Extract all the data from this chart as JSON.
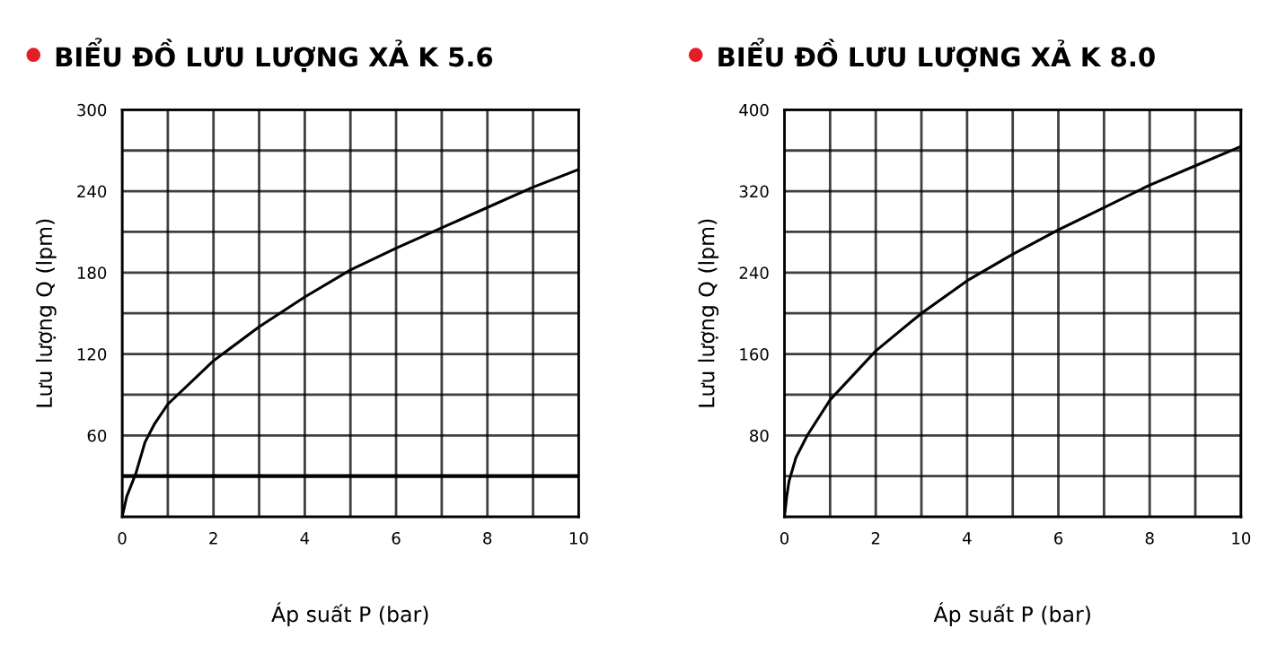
{
  "chart_data": [
    {
      "type": "line",
      "title": "BIỂU ĐỒ LƯU LƯỢNG XẢ K 5.6",
      "xlabel": "Áp suất P (bar)",
      "ylabel": "Lưu lượng Q (lpm)",
      "x": [
        0,
        0.1,
        0.3,
        0.5,
        0.7,
        1,
        2,
        3,
        4,
        5,
        6,
        7,
        8,
        9,
        10
      ],
      "series": [
        {
          "color": "#000000",
          "values": [
            0,
            15,
            32,
            55,
            68,
            83,
            115,
            140,
            162,
            182,
            198,
            213,
            228,
            243,
            256
          ]
        }
      ],
      "xlim": [
        0,
        10
      ],
      "ylim": [
        0,
        300
      ],
      "xticks": [
        0,
        {
          "value": 1,
          "label": null
        },
        2,
        {
          "value": 3,
          "label": null
        },
        4,
        {
          "value": 5,
          "label": null
        },
        6,
        {
          "value": 7,
          "label": null
        },
        8,
        {
          "value": 9,
          "label": null
        },
        10
      ],
      "yticks": [
        {
          "value": 30,
          "label": null
        },
        60,
        {
          "value": 90,
          "label": null
        },
        120,
        {
          "value": 150,
          "label": null
        },
        180,
        {
          "value": 210,
          "label": null
        },
        240,
        {
          "value": 270,
          "label": null
        },
        300
      ],
      "ref_lines": [
        {
          "axis": "y",
          "value": 30,
          "color": "#000000"
        }
      ],
      "grid": true,
      "marker": "none",
      "line_style": "solid",
      "legend": false
    },
    {
      "type": "line",
      "title": "BIỂU ĐỒ LƯU LƯỢNG XẢ K 8.0",
      "xlabel": "Áp suất P (bar)",
      "ylabel": "Lưu lượng Q (lpm)",
      "x": [
        0,
        0.05,
        0.1,
        0.25,
        0.5,
        1,
        2,
        3,
        4,
        5,
        6,
        7,
        8,
        9,
        10
      ],
      "series": [
        {
          "color": "#000000",
          "values": [
            0,
            20,
            35,
            58,
            80,
            115,
            163,
            200,
            232,
            258,
            282,
            304,
            326,
            345,
            364
          ]
        }
      ],
      "xlim": [
        0,
        10
      ],
      "ylim": [
        0,
        400
      ],
      "xticks": [
        0,
        {
          "value": 1,
          "label": null
        },
        2,
        {
          "value": 3,
          "label": null
        },
        4,
        {
          "value": 5,
          "label": null
        },
        6,
        {
          "value": 7,
          "label": null
        },
        8,
        {
          "value": 9,
          "label": null
        },
        10
      ],
      "yticks": [
        {
          "value": 40,
          "label": null
        },
        80,
        {
          "value": 120,
          "label": null
        },
        160,
        {
          "value": 200,
          "label": null
        },
        240,
        {
          "value": 280,
          "label": null
        },
        320,
        {
          "value": 360,
          "label": null
        },
        400
      ],
      "grid": true,
      "marker": "none",
      "line_style": "solid",
      "legend": false
    }
  ]
}
